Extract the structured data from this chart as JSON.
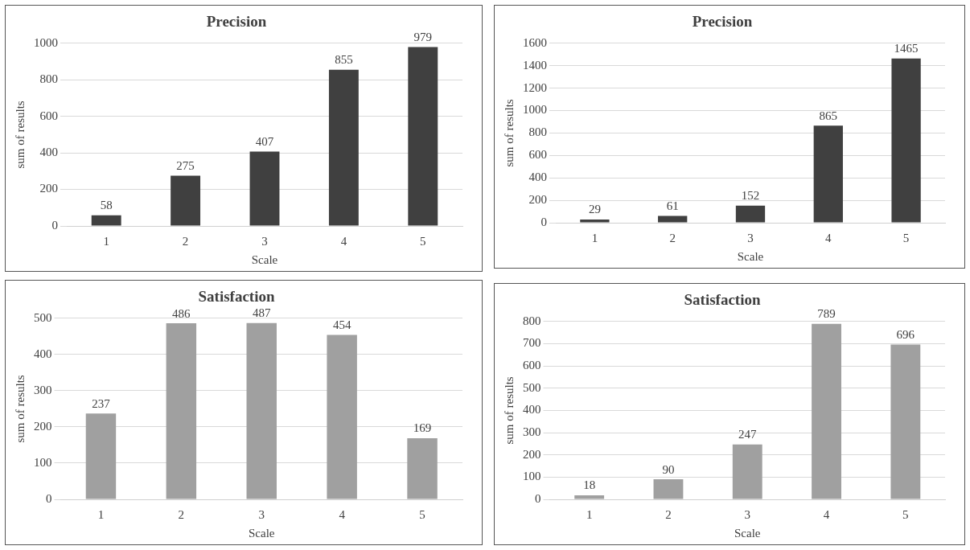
{
  "chart_data": [
    {
      "type": "bar",
      "title": "Precision",
      "xlabel": "Scale",
      "ylabel": "sum of results",
      "categories": [
        "1",
        "2",
        "3",
        "4",
        "5"
      ],
      "values": [
        58,
        275,
        407,
        855,
        979
      ],
      "color": "#404040",
      "ylim": [
        0,
        1000
      ],
      "yticks": [
        0,
        200,
        400,
        600,
        800,
        1000
      ],
      "grid": "y",
      "data_labels": true
    },
    {
      "type": "bar",
      "title": "Precision",
      "xlabel": "Scale",
      "ylabel": "sum of results",
      "categories": [
        "1",
        "2",
        "3",
        "4",
        "5"
      ],
      "values": [
        29,
        61,
        152,
        865,
        1465
      ],
      "color": "#404040",
      "ylim": [
        0,
        1600
      ],
      "yticks": [
        0,
        200,
        400,
        600,
        800,
        1000,
        1200,
        1400,
        1600
      ],
      "grid": "y",
      "data_labels": true
    },
    {
      "type": "bar",
      "title": "Satisfaction",
      "xlabel": "Scale",
      "ylabel": "sum of results",
      "categories": [
        "1",
        "2",
        "3",
        "4",
        "5"
      ],
      "values": [
        237,
        486,
        487,
        454,
        169
      ],
      "color": "#a0a0a0",
      "ylim": [
        0,
        500
      ],
      "yticks": [
        0,
        100,
        200,
        300,
        400,
        500
      ],
      "grid": "y",
      "data_labels": true
    },
    {
      "type": "bar",
      "title": "Satisfaction",
      "xlabel": "Scale",
      "ylabel": "sum of results",
      "categories": [
        "1",
        "2",
        "3",
        "4",
        "5"
      ],
      "values": [
        18,
        90,
        247,
        789,
        696
      ],
      "color": "#a0a0a0",
      "ylim": [
        0,
        800
      ],
      "yticks": [
        0,
        100,
        200,
        300,
        400,
        500,
        600,
        700,
        800
      ],
      "grid": "y",
      "data_labels": true
    }
  ]
}
